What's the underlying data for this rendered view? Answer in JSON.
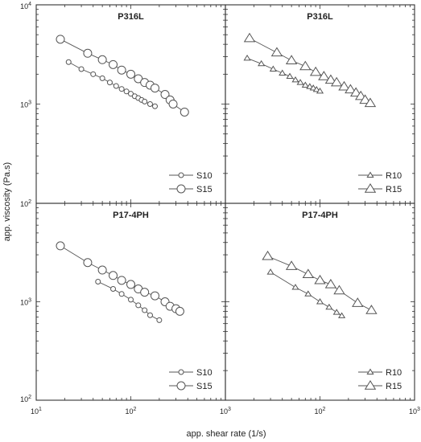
{
  "chart_data": [
    {
      "type": "scatter",
      "title": "P316L",
      "xscale": "log",
      "yscale": "log",
      "xlim": [
        10,
        1000
      ],
      "ylim": [
        100,
        10000
      ],
      "legend_position": "bottom-right",
      "series": [
        {
          "name": "S10",
          "marker": "circle-small",
          "x": [
            22,
            30,
            40,
            50,
            60,
            70,
            80,
            90,
            100,
            110,
            120,
            130,
            140,
            160,
            180
          ],
          "y": [
            2650,
            2250,
            2000,
            1820,
            1650,
            1520,
            1420,
            1340,
            1270,
            1200,
            1150,
            1100,
            1060,
            1000,
            950
          ]
        },
        {
          "name": "S15",
          "marker": "circle-large",
          "x": [
            18,
            35,
            50,
            65,
            80,
            100,
            120,
            140,
            160,
            180,
            230,
            260,
            280,
            370
          ],
          "y": [
            4500,
            3250,
            2800,
            2500,
            2200,
            2000,
            1800,
            1650,
            1550,
            1450,
            1250,
            1100,
            1000,
            830
          ]
        }
      ]
    },
    {
      "type": "scatter",
      "title": "P316L",
      "xscale": "log",
      "yscale": "log",
      "xlim": [
        10,
        1000
      ],
      "ylim": [
        100,
        10000
      ],
      "legend_position": "bottom-right",
      "series": [
        {
          "name": "R10",
          "marker": "triangle-small",
          "x": [
            17,
            24,
            32,
            40,
            48,
            55,
            62,
            70,
            78,
            85,
            92,
            100
          ],
          "y": [
            2900,
            2550,
            2250,
            2050,
            1900,
            1750,
            1650,
            1550,
            1500,
            1450,
            1400,
            1350
          ]
        },
        {
          "name": "R15",
          "marker": "triangle-large",
          "x": [
            18,
            35,
            50,
            70,
            90,
            110,
            130,
            150,
            180,
            210,
            240,
            270,
            300,
            340
          ],
          "y": [
            4600,
            3300,
            2750,
            2400,
            2100,
            1900,
            1750,
            1650,
            1500,
            1400,
            1300,
            1200,
            1100,
            1020
          ]
        }
      ]
    },
    {
      "type": "scatter",
      "title": "P17-4PH",
      "xscale": "log",
      "yscale": "log",
      "xlim": [
        10,
        1000
      ],
      "ylim": [
        100,
        10000
      ],
      "legend_position": "bottom-right",
      "series": [
        {
          "name": "S10",
          "marker": "circle-small",
          "x": [
            45,
            65,
            80,
            100,
            120,
            140,
            160,
            200
          ],
          "y": [
            1600,
            1350,
            1200,
            1050,
            920,
            820,
            730,
            650
          ]
        },
        {
          "name": "S15",
          "marker": "circle-large",
          "x": [
            18,
            35,
            50,
            65,
            80,
            100,
            120,
            140,
            180,
            230,
            260,
            300,
            330
          ],
          "y": [
            3700,
            2500,
            2100,
            1850,
            1650,
            1500,
            1350,
            1250,
            1150,
            1000,
            900,
            850,
            800
          ]
        }
      ]
    },
    {
      "type": "scatter",
      "title": "P17-4PH",
      "xscale": "log",
      "yscale": "log",
      "xlim": [
        10,
        1000
      ],
      "ylim": [
        100,
        10000
      ],
      "legend_position": "bottom-right",
      "series": [
        {
          "name": "R10",
          "marker": "triangle-small",
          "x": [
            30,
            55,
            75,
            100,
            125,
            150,
            170
          ],
          "y": [
            2000,
            1400,
            1200,
            1000,
            880,
            780,
            720
          ]
        },
        {
          "name": "R15",
          "marker": "triangle-large",
          "x": [
            28,
            50,
            75,
            100,
            130,
            160,
            250,
            350
          ],
          "y": [
            2900,
            2300,
            1900,
            1650,
            1500,
            1300,
            970,
            820
          ]
        }
      ]
    }
  ],
  "axes": {
    "xlabel": "app. shear rate (1/s)",
    "ylabel": "app. viscosity (Pa.s)",
    "xticks": [
      {
        "base": "10",
        "exp": "1"
      },
      {
        "base": "10",
        "exp": "2"
      },
      {
        "base": "10",
        "exp": "3"
      }
    ],
    "yticks": [
      {
        "base": "10",
        "exp": "2"
      },
      {
        "base": "10",
        "exp": "3"
      },
      {
        "base": "10",
        "exp": "4"
      }
    ]
  }
}
